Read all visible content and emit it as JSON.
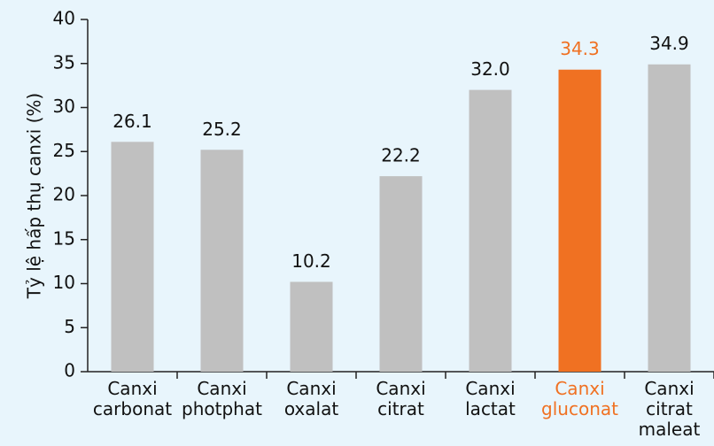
{
  "chart_data": {
    "type": "bar",
    "ylabel": "Tỷ lệ hấp thụ canxi (%)",
    "categories": [
      "Canxi carbonat",
      "Canxi photphat",
      "Canxi oxalat",
      "Canxi citrat",
      "Canxi lactat",
      "Canxi gluconat",
      "Canxi citrat maleat"
    ],
    "values": [
      26.1,
      25.2,
      10.2,
      22.2,
      32.0,
      34.3,
      34.9
    ],
    "value_labels": [
      "26.1",
      "25.2",
      "10.2",
      "22.2",
      "32.0",
      "34.3",
      "34.9"
    ],
    "colors": [
      "#c0c0c0",
      "#c0c0c0",
      "#c0c0c0",
      "#c0c0c0",
      "#c0c0c0",
      "#f07122",
      "#c0c0c0"
    ],
    "label_colors": [
      "#111111",
      "#111111",
      "#111111",
      "#111111",
      "#111111",
      "#f07122",
      "#111111"
    ],
    "ylim": [
      0,
      40
    ],
    "yticks": [
      0,
      5,
      10,
      15,
      20,
      25,
      30,
      35,
      40
    ],
    "grid": false
  }
}
